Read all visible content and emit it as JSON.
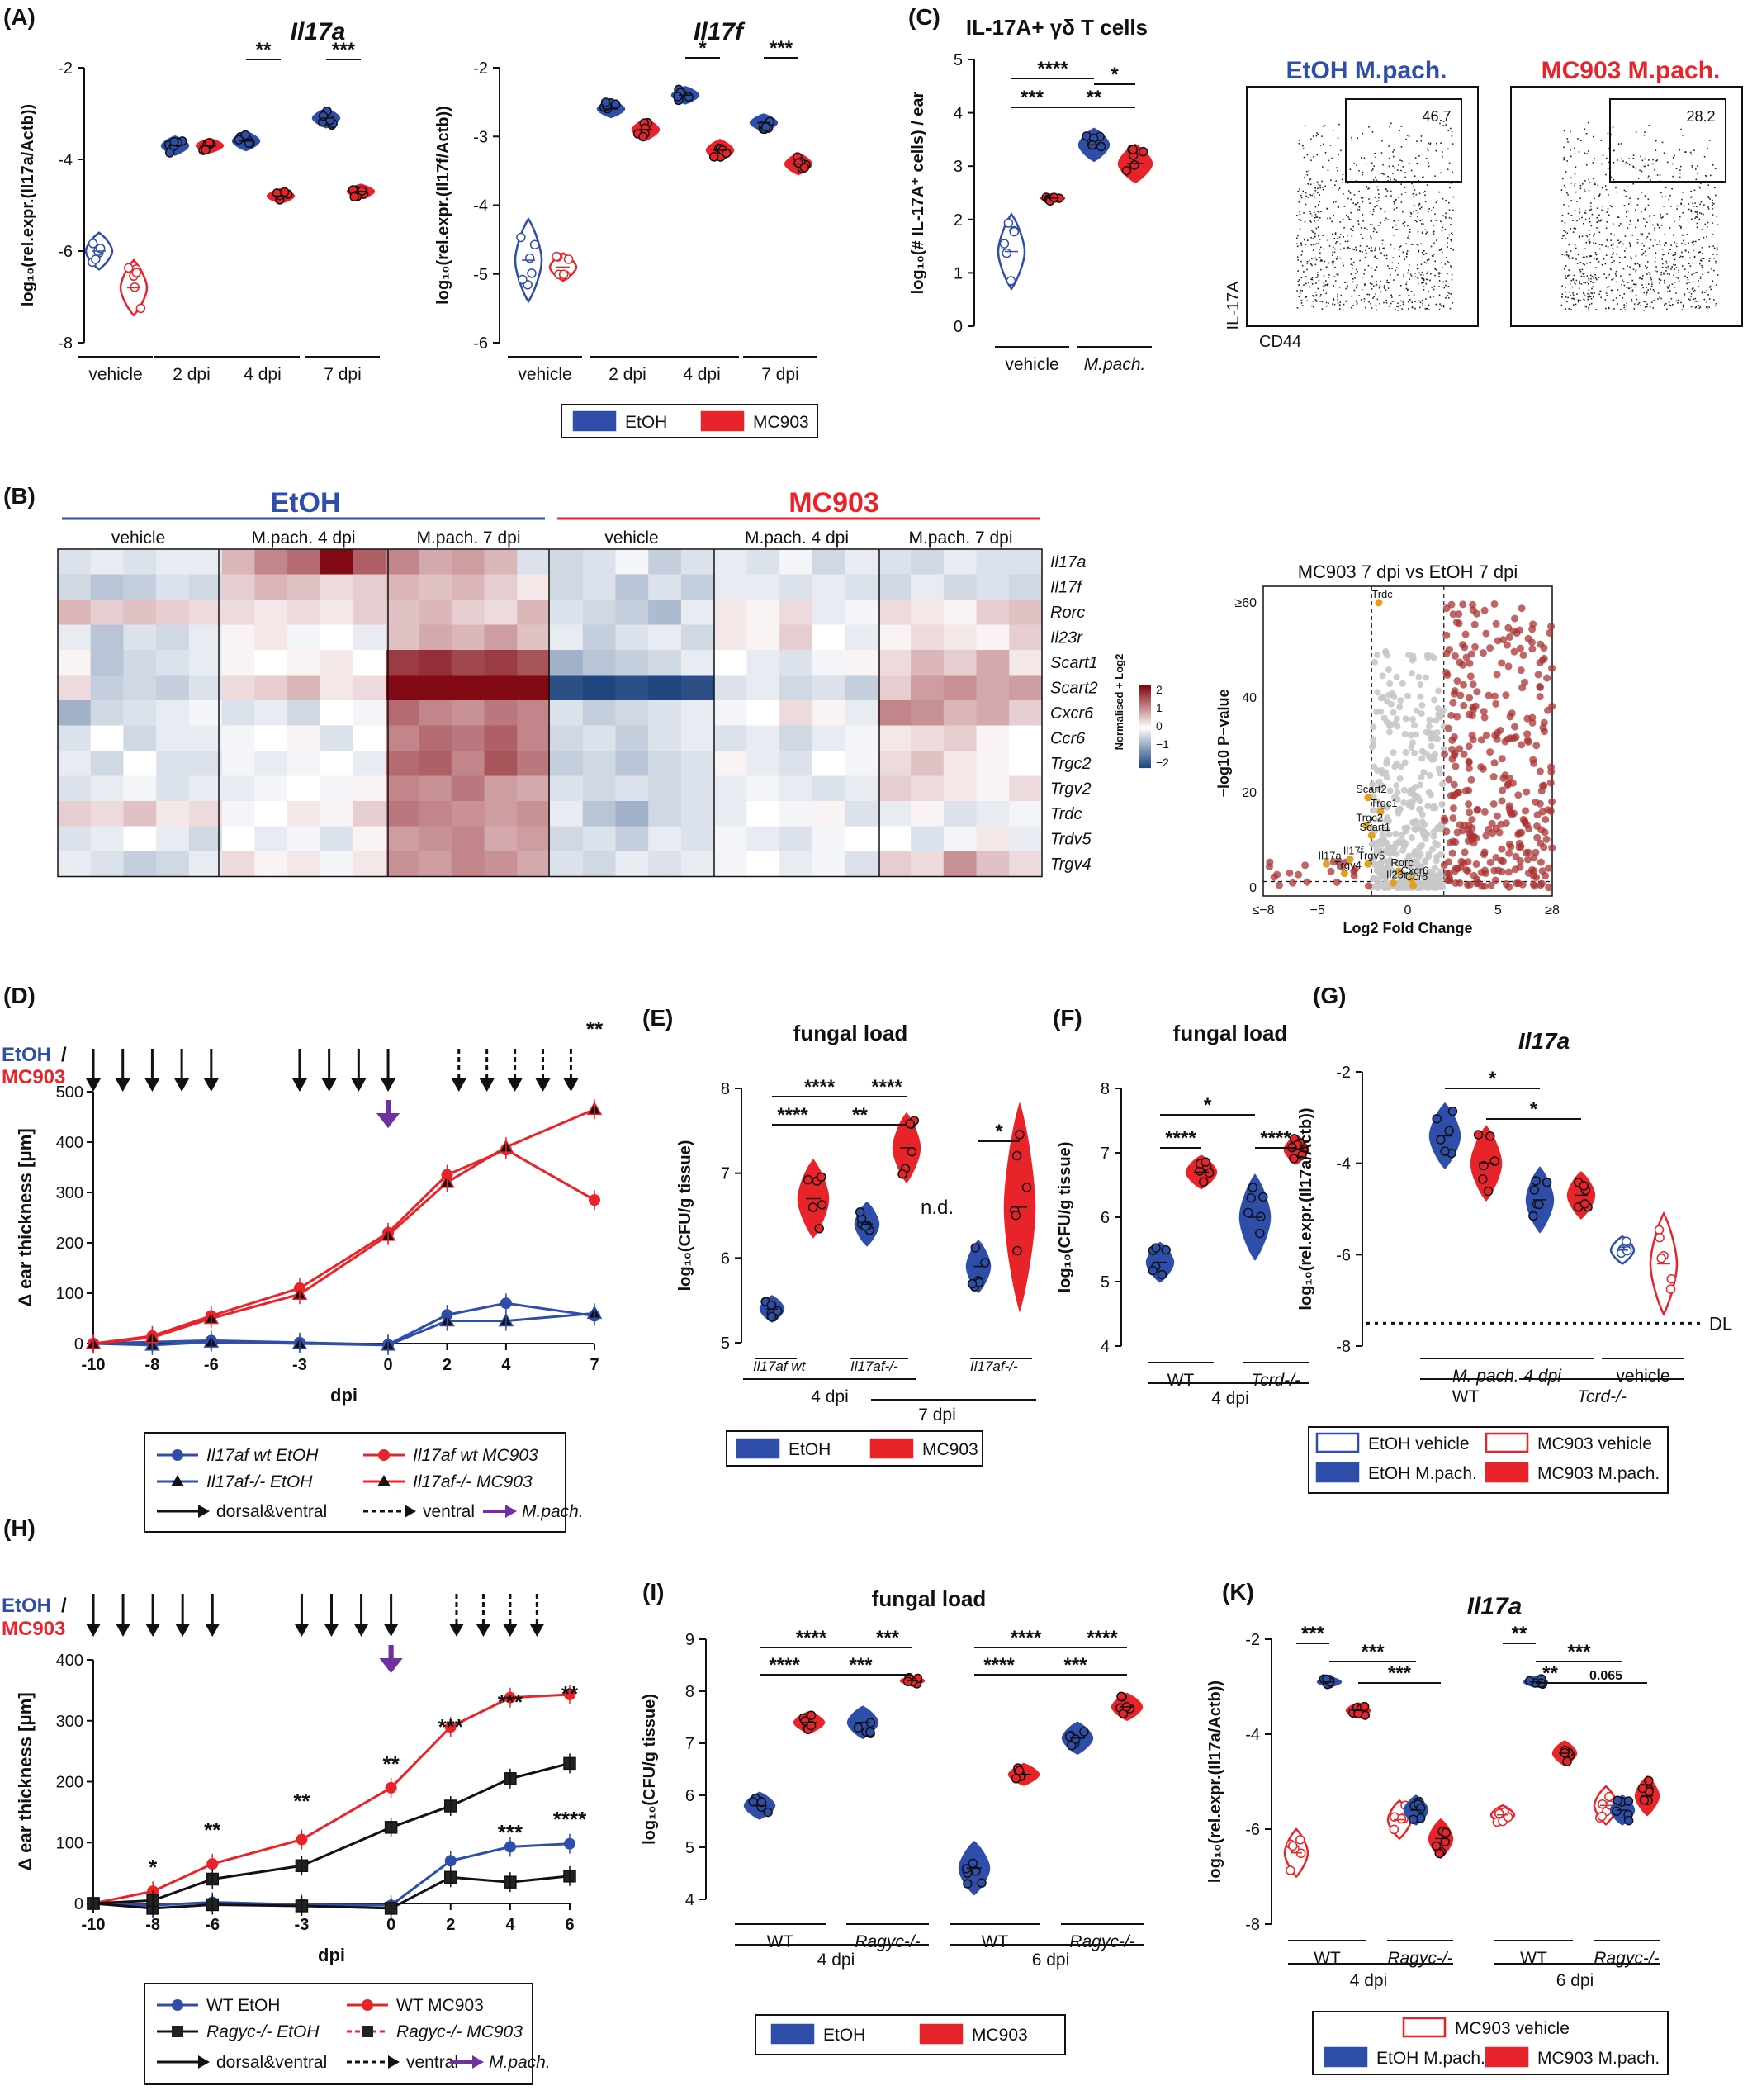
{
  "colors": {
    "etoh": "#2e4eaa",
    "mc903": "#e8242a",
    "purple": "#7030a0",
    "lightgray": "#c8c8c8",
    "darkred": "#8b1a1a"
  },
  "panel_labels": [
    "(A)",
    "(B)",
    "(C)",
    "(D)",
    "(E)",
    "(F)",
    "(G)",
    "(H)",
    "(I)",
    "(K)"
  ],
  "legends": {
    "ac": [
      "EtOH",
      "MC903"
    ],
    "d": [
      "Il17af wt EtOH",
      "Il17af wt MC903",
      "Il17af-/- EtOH",
      "Il17af-/- MC903"
    ],
    "arrows": [
      "dorsal&ventral",
      "ventral",
      "M.pach."
    ],
    "e": [
      "EtOH",
      "MC903"
    ],
    "g": [
      "EtOH vehicle",
      "MC903 vehicle",
      "EtOH M.pach.",
      "MC903 M.pach."
    ],
    "h": [
      "WT EtOH",
      "WT MC903",
      "Ragyc-/- EtOH",
      "Ragyc-/- MC903"
    ],
    "i": [
      "EtOH",
      "MC903"
    ],
    "k": [
      "MC903 vehicle",
      "EtOH M.pach.",
      "MC903 M.pach."
    ]
  },
  "titles": {
    "a1": "Il17a",
    "a2": "Il17f",
    "c": "IL-17A⁺ γδ T cells",
    "e": "fungal load",
    "f": "fungal load",
    "g": "Il17a",
    "i": "fungal load",
    "k": "Il17a",
    "b_etoh": "EtOH",
    "b_mc903": "MC903",
    "flow1": "EtOH M.pach.",
    "flow2": "MC903 M.pach.",
    "volcano": "MC903 7 dpi vs EtOH 7 dpi"
  },
  "axis": {
    "a1_y": "log₁₀(rel.expr.(Il17a/Actb))",
    "a2_y": "log₁₀(rel.expr.(Il17f/Actb))",
    "c_y": "log₁₀(# IL-17A⁺ cells) / ear",
    "d_y": "Δ ear thickness [μm]",
    "d_x": "dpi",
    "e_y": "log₁₀(CFU/g tissue)",
    "g_y": "log₁₀(rel.expr.(Il17a/Actb))",
    "volcano_x": "Log2 Fold Change",
    "volcano_y": "−log10 P−value",
    "flow_y": "IL-17A",
    "flow_x": "CD44"
  },
  "chart_data": [
    {
      "id": "A1",
      "type": "violin",
      "title": "Il17a",
      "ylabel": "log10(rel.expr.(Il17a/Actb))",
      "ylim": [
        -8,
        -2
      ],
      "groups": [
        "vehicle",
        "2 dpi",
        "4 dpi",
        "7 dpi"
      ],
      "series": [
        {
          "name": "EtOH",
          "values": [
            -6.0,
            -3.7,
            -3.6,
            -3.1
          ]
        },
        {
          "name": "MC903",
          "values": [
            -6.8,
            -3.7,
            -4.8,
            -4.7
          ]
        }
      ],
      "annotations": [
        "**",
        "***"
      ]
    },
    {
      "id": "A2",
      "type": "violin",
      "title": "Il17f",
      "ylabel": "log10(rel.expr.(Il17f/Actb))",
      "ylim": [
        -6,
        -2
      ],
      "groups": [
        "vehicle",
        "2 dpi",
        "4 dpi",
        "7 dpi"
      ],
      "series": [
        {
          "name": "EtOH",
          "values": [
            -4.8,
            -2.6,
            -2.4,
            -2.8
          ]
        },
        {
          "name": "MC903",
          "values": [
            -4.9,
            -2.9,
            -3.2,
            -3.4
          ]
        }
      ],
      "annotations": [
        "*",
        "***"
      ]
    },
    {
      "id": "C",
      "type": "violin",
      "title": "IL-17A+ γδ T cells",
      "ylabel": "log10(# IL-17A+ cells) / ear",
      "ylim": [
        0,
        5
      ],
      "groups": [
        "vehicle",
        "M.pach."
      ],
      "series": [
        {
          "name": "EtOH",
          "values": [
            1.4,
            3.4
          ]
        },
        {
          "name": "MC903",
          "values": [
            2.4,
            3.0
          ]
        }
      ],
      "annotations": [
        "****",
        "*",
        "***",
        "**"
      ]
    },
    {
      "id": "C_flow",
      "type": "scatter",
      "panels": [
        {
          "title": "EtOH M.pach.",
          "gate": "46.7"
        },
        {
          "title": "MC903 M.pach.",
          "gate": "28.2"
        }
      ]
    },
    {
      "id": "B_heatmap",
      "type": "heatmap",
      "genes": [
        "Il17a",
        "Il17f",
        "Rorc",
        "Il23r",
        "Scart1",
        "Scart2",
        "Cxcr6",
        "Ccr6",
        "Trgc2",
        "Trgv2",
        "Trdc",
        "Trdv5",
        "Trgv4"
      ],
      "groups": [
        "vehicle",
        "M.pach. 4 dpi",
        "M.pach. 7 dpi",
        "vehicle",
        "M.pach. 4 dpi",
        "M.pach. 7 dpi"
      ],
      "conditions": [
        "EtOH",
        "MC903"
      ],
      "colorbar_label": "Normalised + Log2",
      "colorbar_ticks": [
        "2",
        "1",
        "0",
        "−1",
        "−2"
      ],
      "values": [
        [
          -0.3,
          -0.2,
          -0.3,
          -0.2,
          -0.2,
          0.6,
          1.0,
          1.2,
          2.0,
          1.3,
          1.0,
          0.7,
          0.8,
          0.6,
          -0.3,
          -0.4,
          -0.3,
          -0.1,
          -0.5,
          -0.3,
          -0.2,
          -0.3,
          -0.1,
          -0.4,
          -0.2,
          -0.3,
          -0.4,
          -0.2,
          -0.3,
          -0.3
        ],
        [
          -0.4,
          -0.6,
          -0.5,
          -0.3,
          -0.4,
          0.4,
          0.6,
          0.5,
          0.3,
          0.4,
          0.6,
          0.5,
          0.6,
          0.4,
          0.2,
          -0.4,
          -0.3,
          -0.6,
          -0.3,
          -0.5,
          -0.2,
          -0.2,
          -0.3,
          -0.2,
          -0.3,
          -0.4,
          -0.2,
          -0.4,
          -0.3,
          -0.4
        ],
        [
          0.6,
          0.4,
          0.5,
          0.4,
          0.3,
          0.3,
          0.2,
          0.3,
          0.2,
          0.4,
          0.5,
          0.6,
          0.4,
          0.3,
          0.6,
          -0.3,
          -0.4,
          -0.5,
          -0.7,
          -0.2,
          0.2,
          0.1,
          0.3,
          -0.2,
          -0.1,
          0.3,
          0.2,
          0.1,
          0.4,
          0.5
        ],
        [
          -0.2,
          -0.6,
          -0.3,
          -0.4,
          -0.2,
          0.1,
          0.2,
          -0.1,
          0.0,
          -0.2,
          0.5,
          0.7,
          0.6,
          0.8,
          0.5,
          -0.2,
          -0.5,
          -0.3,
          -0.2,
          -0.4,
          0.2,
          0.1,
          0.4,
          0.0,
          -0.2,
          0.1,
          0.3,
          0.2,
          0.1,
          0.4
        ],
        [
          0.1,
          -0.6,
          -0.4,
          -0.3,
          -0.2,
          0.1,
          0.0,
          0.1,
          0.2,
          0.0,
          1.6,
          1.7,
          1.5,
          1.6,
          1.4,
          -0.8,
          -0.6,
          -0.5,
          -0.4,
          -0.2,
          0.0,
          -0.2,
          -0.3,
          -0.1,
          0.1,
          0.3,
          0.6,
          0.4,
          0.7,
          0.2
        ],
        [
          0.3,
          -0.5,
          -0.4,
          -0.5,
          -0.3,
          0.3,
          0.4,
          0.6,
          0.2,
          0.3,
          2.0,
          2.0,
          2.0,
          2.0,
          2.0,
          -1.8,
          -1.9,
          -1.8,
          -1.9,
          -1.8,
          -0.3,
          -0.2,
          -0.4,
          -0.3,
          -0.5,
          0.4,
          0.8,
          0.9,
          0.7,
          0.8
        ],
        [
          -0.8,
          -0.4,
          -0.3,
          -0.2,
          -0.1,
          -0.3,
          -0.2,
          -0.4,
          0.0,
          -0.1,
          1.2,
          1.0,
          0.9,
          1.1,
          1.0,
          -0.3,
          -0.5,
          -0.4,
          -0.3,
          -0.2,
          -0.1,
          0.0,
          0.3,
          0.1,
          -0.2,
          1.0,
          0.9,
          0.6,
          0.7,
          0.4
        ],
        [
          -0.3,
          0.0,
          -0.4,
          -0.2,
          -0.2,
          -0.1,
          0.0,
          0.1,
          -0.3,
          0.0,
          1.0,
          1.2,
          1.1,
          1.3,
          1.0,
          -0.4,
          -0.3,
          -0.5,
          -0.3,
          -0.2,
          -0.3,
          -0.2,
          -0.4,
          -0.2,
          -0.1,
          0.2,
          0.3,
          0.4,
          0.1,
          0.0
        ],
        [
          -0.2,
          -0.4,
          0.0,
          -0.3,
          -0.3,
          -0.1,
          -0.2,
          -0.1,
          0.0,
          -0.2,
          1.2,
          1.3,
          1.0,
          1.4,
          1.1,
          -0.5,
          -0.4,
          -0.6,
          -0.4,
          -0.3,
          0.1,
          -0.2,
          -0.3,
          0.0,
          -0.1,
          0.3,
          0.5,
          0.2,
          0.1,
          0.0
        ],
        [
          -0.3,
          -0.2,
          -0.1,
          -0.3,
          -0.2,
          -0.2,
          -0.1,
          0.0,
          -0.1,
          0.1,
          1.0,
          0.9,
          1.1,
          0.8,
          0.7,
          -0.3,
          -0.4,
          -0.3,
          -0.4,
          -0.3,
          -0.2,
          -0.1,
          -0.2,
          -0.3,
          -0.2,
          0.4,
          0.3,
          0.2,
          0.1,
          0.3
        ],
        [
          0.4,
          0.3,
          0.5,
          0.2,
          0.3,
          -0.1,
          0.0,
          0.2,
          0.1,
          0.4,
          1.1,
          1.0,
          0.9,
          0.8,
          0.9,
          -0.2,
          -0.6,
          -0.8,
          -0.4,
          -0.3,
          -0.2,
          0.0,
          -0.1,
          0.1,
          -0.3,
          -0.2,
          0.1,
          -0.3,
          -0.2,
          -0.1
        ],
        [
          -0.3,
          -0.2,
          0.0,
          -0.2,
          -0.4,
          0.0,
          -0.2,
          -0.1,
          -0.3,
          0.1,
          0.8,
          0.9,
          1.0,
          0.7,
          0.8,
          -0.4,
          -0.3,
          -0.5,
          -0.2,
          -0.3,
          -0.1,
          -0.2,
          -0.3,
          -0.1,
          0.0,
          0.0,
          -0.3,
          -0.1,
          0.2,
          -0.2
        ],
        [
          -0.2,
          -0.3,
          -0.5,
          -0.4,
          -0.2,
          0.3,
          0.1,
          0.2,
          -0.1,
          0.2,
          0.9,
          0.8,
          1.0,
          0.9,
          0.7,
          -0.3,
          -0.4,
          -0.2,
          -0.3,
          -0.2,
          -0.1,
          0.0,
          -0.2,
          -0.1,
          -0.3,
          0.4,
          0.3,
          0.9,
          0.5,
          0.3
        ]
      ]
    },
    {
      "id": "B_volcano",
      "type": "scatter",
      "title": "MC903 7 dpi vs EtOH 7 dpi",
      "xlabel": "Log2 Fold Change",
      "ylabel": "−log10 P−value",
      "xlim": [
        -8,
        8
      ],
      "ylim": [
        0,
        60
      ],
      "xticks": [
        "≤−8",
        "−5",
        "0",
        "5",
        "≥8"
      ],
      "yticks": [
        "0",
        "20",
        "40",
        "≥60"
      ],
      "labels": [
        "Trdc",
        "Scart2",
        "Trgc1",
        "Trgc2",
        "Scart1",
        "Il17f",
        "Trgv5",
        "Il17a",
        "Trgv4",
        "Rorc",
        "Cxcr6",
        "Il23r",
        "Ccr6"
      ]
    },
    {
      "id": "D",
      "type": "line",
      "xlabel": "dpi",
      "ylabel": "Δ ear thickness [μm]",
      "xlim": [
        -10,
        7
      ],
      "ylim": [
        0,
        500
      ],
      "x": [
        -10,
        -8,
        -6,
        -3,
        0,
        2,
        4,
        7
      ],
      "series": [
        {
          "name": "Il17af wt EtOH",
          "values": [
            0,
            3,
            6,
            2,
            -2,
            57,
            80,
            55
          ]
        },
        {
          "name": "Il17af wt MC903",
          "values": [
            0,
            15,
            55,
            110,
            220,
            335,
            385,
            285
          ]
        },
        {
          "name": "Il17af-/- EtOH",
          "values": [
            0,
            -3,
            3,
            0,
            -3,
            45,
            45,
            60
          ]
        },
        {
          "name": "Il17af-/- MC903",
          "values": [
            0,
            12,
            50,
            98,
            215,
            320,
            390,
            465
          ]
        }
      ],
      "arrows_solid_x": [
        -10,
        -9,
        -8,
        -7,
        -6,
        -3,
        -2,
        -1,
        0
      ],
      "arrows_dashed_x": [
        2,
        3,
        4,
        5,
        6
      ],
      "m_pach_x": 0,
      "annotation": "**"
    },
    {
      "id": "E",
      "type": "violin",
      "title": "fungal load",
      "ylabel": "log10(CFU/g tissue)",
      "ylim": [
        5,
        8
      ],
      "groups": [
        "Il17af wt 4 dpi",
        "Il17af-/- 4 dpi",
        "Il17af wt 7 dpi",
        "Il17af-/- 7 dpi"
      ],
      "series": [
        {
          "name": "EtOH",
          "values": [
            5.4,
            6.4,
            null,
            5.9
          ]
        },
        {
          "name": "MC903",
          "values": [
            6.7,
            7.3,
            null,
            6.7
          ]
        }
      ],
      "annotations": [
        "****",
        "****",
        "****",
        "**",
        "*",
        "n.d."
      ]
    },
    {
      "id": "F",
      "type": "violin",
      "title": "fungal load",
      "ylabel": "log10(CFU/g tissue)",
      "ylim": [
        4,
        8
      ],
      "groups": [
        "WT",
        "Tcrd-/-"
      ],
      "series": [
        {
          "name": "EtOH",
          "values": [
            5.3,
            6.0
          ]
        },
        {
          "name": "MC903",
          "values": [
            6.7,
            7.1
          ]
        }
      ],
      "annotations": [
        "*",
        "****",
        "****"
      ]
    },
    {
      "id": "G",
      "type": "violin",
      "title": "Il17a",
      "ylabel": "log10(rel.expr.(Il17a/Actb))",
      "ylim": [
        -8,
        -2
      ],
      "groups": [
        "WT M.pach. 4 dpi",
        "Tcrd-/- M.pach. 4 dpi",
        "Tcrd-/- vehicle"
      ],
      "series": [
        {
          "name": "EtOH",
          "values": [
            -3.4,
            -4.8,
            -5.9
          ]
        },
        {
          "name": "MC903",
          "values": [
            -4.0,
            -4.7,
            -6.0
          ]
        }
      ],
      "detection_limit": -7.5,
      "annotations": [
        "*",
        "*",
        "DL"
      ]
    },
    {
      "id": "H",
      "type": "line",
      "xlabel": "dpi",
      "ylabel": "Δ ear thickness [μm]",
      "xlim": [
        -10,
        6
      ],
      "ylim": [
        0,
        400
      ],
      "x": [
        -10,
        -8,
        -6,
        -3,
        0,
        2,
        4,
        6
      ],
      "series": [
        {
          "name": "WT EtOH",
          "values": [
            0,
            -3,
            2,
            -2,
            -3,
            70,
            93,
            98
          ]
        },
        {
          "name": "WT MC903",
          "values": [
            0,
            20,
            65,
            105,
            190,
            290,
            338,
            343
          ]
        },
        {
          "name": "Ragyc-/- EtOH",
          "values": [
            0,
            -8,
            -2,
            -4,
            -8,
            43,
            35,
            45
          ]
        },
        {
          "name": "Ragyc-/- MC903",
          "values": [
            0,
            5,
            40,
            62,
            125,
            160,
            205,
            230
          ]
        }
      ],
      "annotations": [
        "*",
        "**",
        "**",
        "**",
        "***",
        "***",
        "**",
        "***",
        "****"
      ]
    },
    {
      "id": "I",
      "type": "violin",
      "title": "fungal load",
      "ylabel": "log10(CFU/g tissue)",
      "ylim": [
        4,
        9
      ],
      "groups": [
        "WT 4 dpi",
        "Ragyc-/- 4 dpi",
        "WT 6 dpi",
        "Ragyc-/- 6 dpi"
      ],
      "series": [
        {
          "name": "EtOH",
          "values": [
            5.8,
            7.4,
            4.6,
            7.1
          ]
        },
        {
          "name": "MC903",
          "values": [
            7.4,
            8.2,
            6.4,
            7.7
          ]
        }
      ],
      "annotations": [
        "****",
        "***",
        "****",
        "***",
        "****",
        "****",
        "****",
        "***"
      ]
    },
    {
      "id": "K",
      "type": "violin",
      "title": "Il17a",
      "ylabel": "log10(rel.expr.(Il17a/Actb))",
      "ylim": [
        -8,
        -2
      ],
      "groups": [
        "WT 4 dpi",
        "Ragyc-/- 4 dpi",
        "WT 6 dpi",
        "Ragyc-/- 6 dpi"
      ],
      "series": [
        {
          "name": "MC903 vehicle",
          "values": [
            -6.5,
            -5.8,
            -5.7,
            -5.5
          ]
        },
        {
          "name": "EtOH M.pach.",
          "values": [
            -2.9,
            -5.6,
            -2.9,
            -5.6
          ]
        },
        {
          "name": "MC903 M.pach.",
          "values": [
            -3.5,
            -6.2,
            -4.4,
            -5.3
          ]
        }
      ],
      "annotations": [
        "***",
        "***",
        "***",
        "**",
        "***",
        "**",
        "0.065"
      ]
    }
  ]
}
